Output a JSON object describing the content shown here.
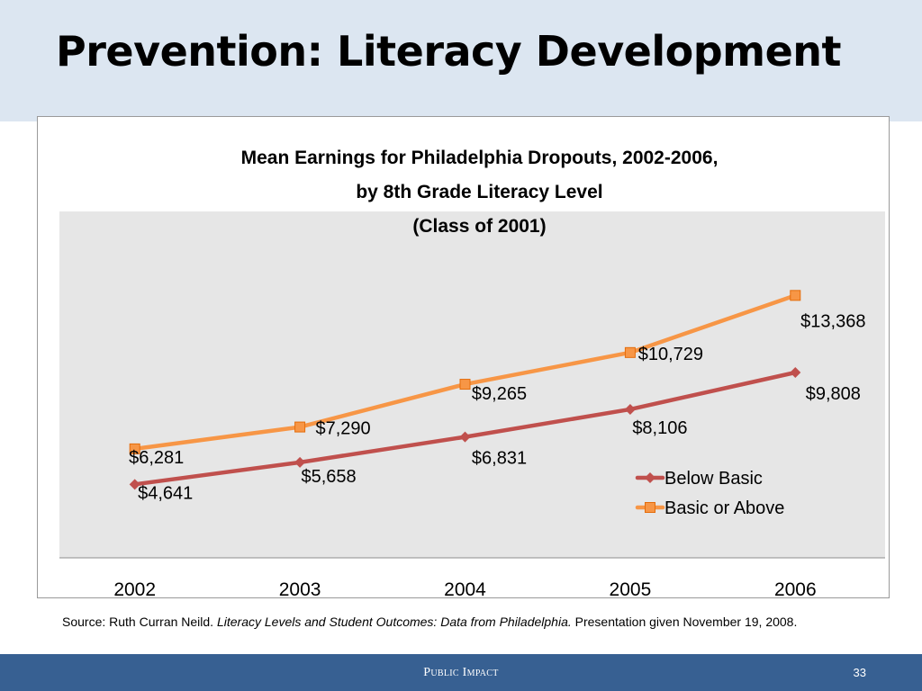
{
  "slide": {
    "title": "Prevention: Literacy Development",
    "source_prefix": "Source: Ruth Curran Neild. ",
    "source_italic": "Literacy Levels and Student Outcomes: Data from Philadelphia.",
    "source_suffix": " Presentation given November 19, 2008.",
    "footer_brand": "Public Impact",
    "page_number": "33"
  },
  "colors": {
    "header_bg": "#dce6f1",
    "plot_bg": "#e6e6e6",
    "below_basic": "#c0504d",
    "basic_or_above": "#f79646",
    "footer_bg": "#376092"
  },
  "chart_data": {
    "type": "line",
    "title": "Mean Earnings for Philadelphia Dropouts, 2002-2006,",
    "title_line2": "by 8th Grade Literacy Level",
    "title_line3": "(Class of 2001)",
    "categories": [
      "2002",
      "2003",
      "2004",
      "2005",
      "2006"
    ],
    "series": [
      {
        "name": "Below Basic",
        "values": [
          4641,
          5658,
          6831,
          8106,
          9808
        ],
        "labels": [
          "$4,641",
          "$5,658",
          "$6,831",
          "$8,106",
          "$9,808"
        ],
        "color": "#c0504d",
        "marker": "diamond"
      },
      {
        "name": "Basic or Above",
        "values": [
          6281,
          7290,
          9265,
          10729,
          13368
        ],
        "labels": [
          "$6,281",
          "$7,290",
          "$9,265",
          "$10,729",
          "$13,368"
        ],
        "color": "#f79646",
        "marker": "square"
      }
    ],
    "ylim": [
      0,
      16000
    ],
    "xlabel": "",
    "ylabel": "",
    "grid": false,
    "legend": "right"
  }
}
